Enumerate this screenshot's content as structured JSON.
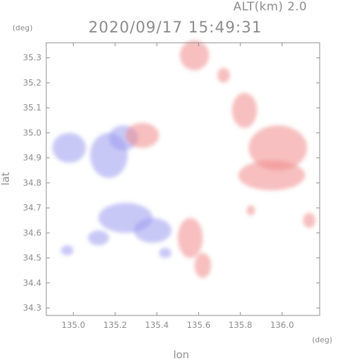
{
  "header": {
    "alt_label": "ALT(km) 2.0",
    "timestamp": "2020/09/17 15:49:31"
  },
  "chart_data": {
    "type": "heatmap",
    "title": "2020/09/17 15:49:31",
    "subtitle": "ALT(km) 2.0",
    "xlabel": "lon",
    "ylabel": "lat",
    "x_unit": "(deg)",
    "y_unit": "(deg)",
    "xlim": [
      134.87,
      136.18
    ],
    "ylim": [
      34.27,
      35.36
    ],
    "x_ticks": [
      135.0,
      135.2,
      135.4,
      135.6,
      135.8,
      136.0
    ],
    "x_tick_labels": [
      "135.0",
      "135.2",
      "135.4",
      "135.6",
      "135.8",
      "136.0"
    ],
    "y_ticks": [
      34.3,
      34.4,
      34.5,
      34.6,
      34.7,
      34.8,
      34.9,
      35.0,
      35.1,
      35.2,
      35.3
    ],
    "y_tick_labels": [
      "34.3",
      "34.4",
      "34.5",
      "34.6",
      "34.7",
      "34.8",
      "34.9",
      "35.0",
      "35.1",
      "35.2",
      "35.3"
    ],
    "colors": {
      "positive": "#f08a8a",
      "negative": "#9a9af0"
    },
    "regions": [
      {
        "sign": "negative",
        "lon": 135.17,
        "lat": 34.91,
        "rx": 0.09,
        "ry": 0.09
      },
      {
        "sign": "negative",
        "lon": 135.24,
        "lat": 34.98,
        "rx": 0.07,
        "ry": 0.05
      },
      {
        "sign": "negative",
        "lon": 134.98,
        "lat": 34.94,
        "rx": 0.08,
        "ry": 0.06
      },
      {
        "sign": "negative",
        "lon": 135.25,
        "lat": 34.66,
        "rx": 0.13,
        "ry": 0.06
      },
      {
        "sign": "negative",
        "lon": 135.38,
        "lat": 34.61,
        "rx": 0.09,
        "ry": 0.05
      },
      {
        "sign": "negative",
        "lon": 135.12,
        "lat": 34.58,
        "rx": 0.05,
        "ry": 0.03
      },
      {
        "sign": "negative",
        "lon": 134.97,
        "lat": 34.53,
        "rx": 0.03,
        "ry": 0.02
      },
      {
        "sign": "negative",
        "lon": 135.44,
        "lat": 34.52,
        "rx": 0.03,
        "ry": 0.02
      },
      {
        "sign": "positive",
        "lon": 135.33,
        "lat": 34.99,
        "rx": 0.08,
        "ry": 0.05
      },
      {
        "sign": "positive",
        "lon": 135.58,
        "lat": 35.31,
        "rx": 0.07,
        "ry": 0.06
      },
      {
        "sign": "positive",
        "lon": 135.98,
        "lat": 34.94,
        "rx": 0.14,
        "ry": 0.09
      },
      {
        "sign": "positive",
        "lon": 135.95,
        "lat": 34.83,
        "rx": 0.16,
        "ry": 0.06
      },
      {
        "sign": "positive",
        "lon": 135.82,
        "lat": 35.09,
        "rx": 0.06,
        "ry": 0.07
      },
      {
        "sign": "positive",
        "lon": 136.13,
        "lat": 34.65,
        "rx": 0.03,
        "ry": 0.03
      },
      {
        "sign": "positive",
        "lon": 135.72,
        "lat": 35.23,
        "rx": 0.03,
        "ry": 0.03
      },
      {
        "sign": "positive",
        "lon": 135.56,
        "lat": 34.58,
        "rx": 0.06,
        "ry": 0.08
      },
      {
        "sign": "positive",
        "lon": 135.62,
        "lat": 34.47,
        "rx": 0.04,
        "ry": 0.05
      },
      {
        "sign": "positive",
        "lon": 135.85,
        "lat": 34.69,
        "rx": 0.02,
        "ry": 0.02
      }
    ],
    "grid": false
  }
}
